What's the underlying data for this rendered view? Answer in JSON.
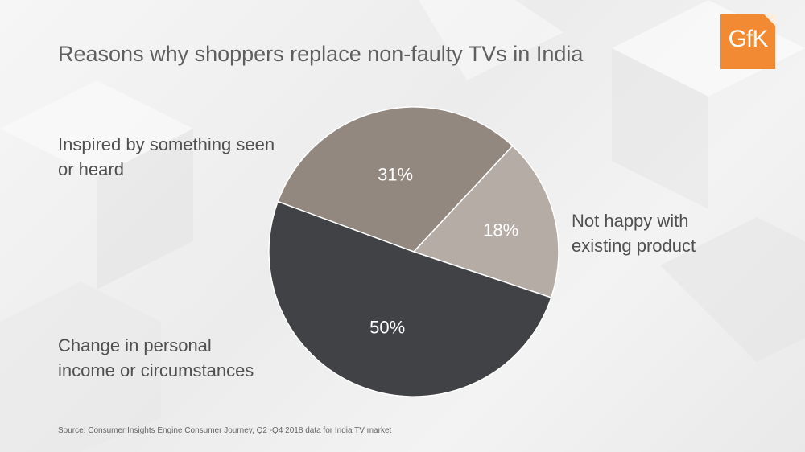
{
  "slide": {
    "title": "Reasons why shoppers replace non-faulty TVs in India",
    "logo_text": "GfK",
    "source": "Source: Consumer Insights Engine  Consumer Journey, Q2 -Q4 2018 data  for India TV market"
  },
  "colors": {
    "logo": "#f18a33",
    "title": "#5f5f5f"
  },
  "chart_data": {
    "type": "pie",
    "title": "Reasons why shoppers replace non-faulty TVs in India",
    "series": [
      {
        "values": [
          31,
          18,
          50
        ],
        "slices": [
          {
            "label_lines": [
              "Inspired by something seen",
              "or heard"
            ],
            "value": 31,
            "value_label": "31%",
            "color": "#938880"
          },
          {
            "label_lines": [
              "Not happy with",
              "existing product"
            ],
            "value": 18,
            "value_label": "18%",
            "color": "#b5aca6"
          },
          {
            "label_lines": [
              "Change in personal",
              "income or circumstances"
            ],
            "value": 50,
            "value_label": "50%",
            "color": "#414245"
          }
        ]
      }
    ],
    "legend": "none"
  }
}
